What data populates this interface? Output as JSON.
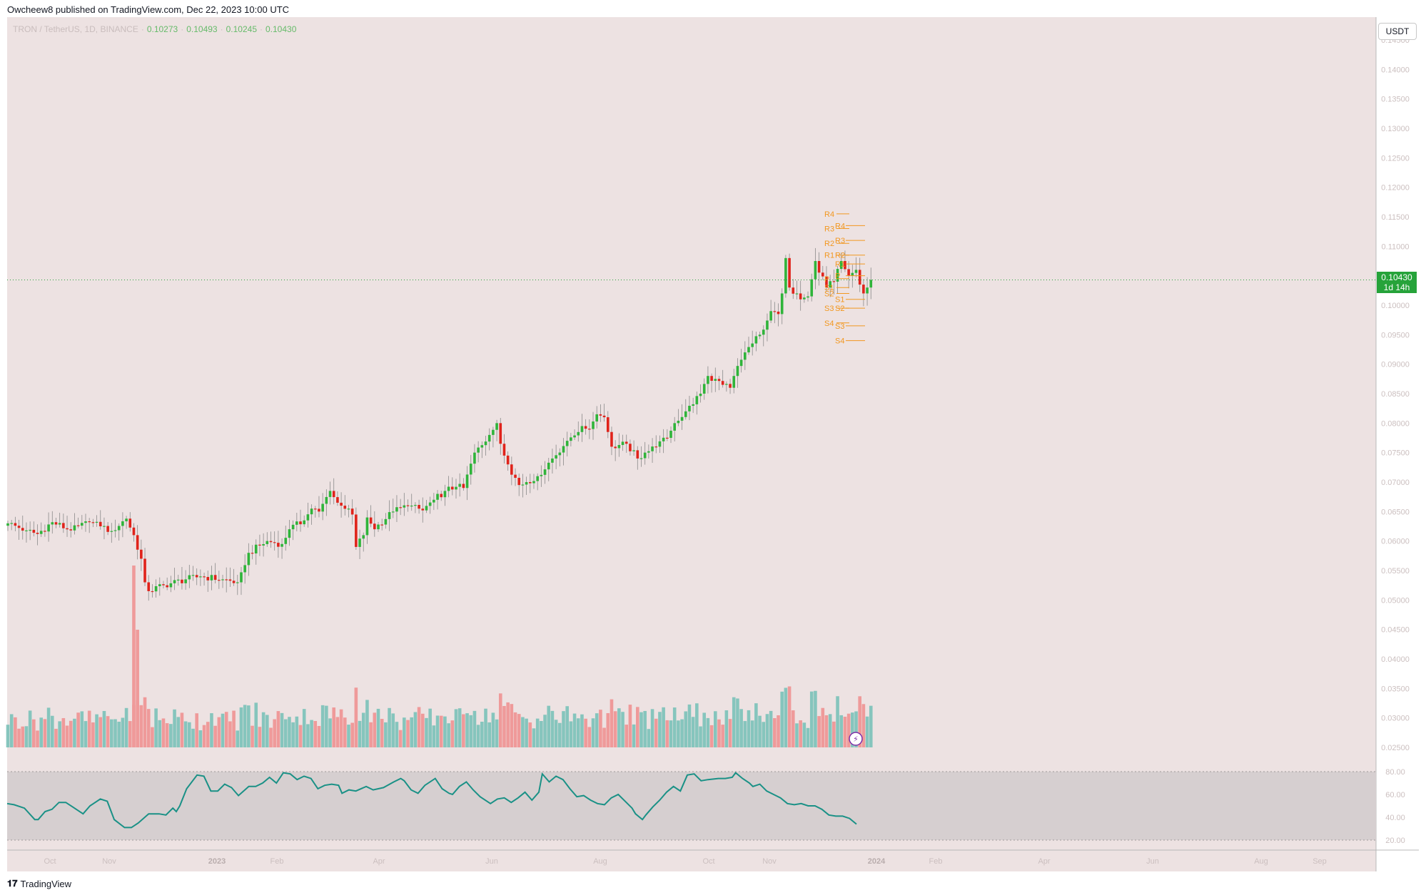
{
  "header": {
    "published_text": "Owcheew8 published on TradingView.com, Dec 22, 2023 10:00 UTC"
  },
  "legend": {
    "symbol": "TRON / TetherUS, 1D, BINANCE",
    "open": "0.10273",
    "high": "0.10493",
    "low": "0.10245",
    "close": "0.10430"
  },
  "currency_button": "USDT",
  "price_tag": {
    "price": "0.10430",
    "countdown": "1d 14h"
  },
  "footer": {
    "brand": "TradingView",
    "logo_glyph": "𝟏𝟕"
  },
  "colors": {
    "up": "#2fb43a",
    "down": "#e0231b",
    "vol_up": "#86c5bd",
    "vol_down": "#ef9a9a",
    "pivot": "#f2971f",
    "rsi": "#1a9186",
    "bg": "#ede2e2"
  },
  "chart_data": [
    {
      "type": "candlestick",
      "title": "TRON / TetherUS, 1D, BINANCE",
      "ylim": [
        0.027,
        0.15
      ],
      "y_ticks": [
        "0.14500",
        "0.14000",
        "0.13500",
        "0.13000",
        "0.12500",
        "0.12000",
        "0.11500",
        "0.11000",
        "0.10500",
        "0.10000",
        "0.09500",
        "0.09000",
        "0.08500",
        "0.08000",
        "0.07500",
        "0.07000",
        "0.06500",
        "0.06000",
        "0.05500",
        "0.05000",
        "0.04500",
        "0.04000",
        "0.03500",
        "0.03000",
        "0.02500"
      ],
      "x_ticks": [
        "Oct",
        "Nov",
        "2023",
        "Feb",
        "Apr",
        "Jun",
        "Aug",
        "Oct",
        "Nov",
        "2024",
        "Feb",
        "Apr",
        "Jun",
        "Aug",
        "Sep"
      ],
      "current_price": 0.1043,
      "anchors": [
        [
          0,
          0.063
        ],
        [
          5,
          0.0618
        ],
        [
          8,
          0.0612
        ],
        [
          12,
          0.0632
        ],
        [
          17,
          0.0618
        ],
        [
          22,
          0.0632
        ],
        [
          25,
          0.0625
        ],
        [
          28,
          0.0617
        ],
        [
          32,
          0.0638
        ],
        [
          34,
          0.061
        ],
        [
          36,
          0.057
        ],
        [
          37,
          0.053
        ],
        [
          38,
          0.0515
        ],
        [
          42,
          0.0525
        ],
        [
          48,
          0.0535
        ],
        [
          52,
          0.054
        ],
        [
          58,
          0.0535
        ],
        [
          62,
          0.053
        ],
        [
          63,
          0.0547
        ],
        [
          65,
          0.058
        ],
        [
          70,
          0.06
        ],
        [
          74,
          0.0595
        ],
        [
          76,
          0.062
        ],
        [
          80,
          0.0635
        ],
        [
          82,
          0.0655
        ],
        [
          84,
          0.065
        ],
        [
          87,
          0.0685
        ],
        [
          89,
          0.0665
        ],
        [
          90,
          0.066
        ],
        [
          92,
          0.0655
        ],
        [
          93,
          0.0645
        ],
        [
          94,
          0.059
        ],
        [
          96,
          0.061
        ],
        [
          97,
          0.064
        ],
        [
          99,
          0.062
        ],
        [
          100,
          0.0628
        ],
        [
          104,
          0.065
        ],
        [
          108,
          0.066
        ],
        [
          112,
          0.0652
        ],
        [
          115,
          0.067
        ],
        [
          118,
          0.0685
        ],
        [
          121,
          0.0692
        ],
        [
          123,
          0.069
        ],
        [
          126,
          0.075
        ],
        [
          130,
          0.078
        ],
        [
          132,
          0.08
        ],
        [
          133,
          0.0765
        ],
        [
          135,
          0.073
        ],
        [
          138,
          0.0695
        ],
        [
          140,
          0.07
        ],
        [
          143,
          0.071
        ],
        [
          147,
          0.074
        ],
        [
          151,
          0.077
        ],
        [
          155,
          0.0795
        ],
        [
          157,
          0.079
        ],
        [
          159,
          0.0815
        ],
        [
          161,
          0.081
        ],
        [
          162,
          0.0785
        ],
        [
          163,
          0.076
        ],
        [
          167,
          0.0765
        ],
        [
          170,
          0.074
        ],
        [
          172,
          0.075
        ],
        [
          175,
          0.076
        ],
        [
          178,
          0.0775
        ],
        [
          180,
          0.08
        ],
        [
          183,
          0.082
        ],
        [
          187,
          0.085
        ],
        [
          189,
          0.088
        ],
        [
          191,
          0.0875
        ],
        [
          193,
          0.0865
        ],
        [
          195,
          0.086
        ],
        [
          196,
          0.088
        ],
        [
          199,
          0.092
        ],
        [
          203,
          0.095
        ],
        [
          206,
          0.099
        ],
        [
          208,
          0.0985
        ],
        [
          209,
          0.102
        ],
        [
          210,
          0.108
        ],
        [
          211,
          0.103
        ],
        [
          213,
          0.102
        ],
        [
          214,
          0.101
        ],
        [
          216,
          0.1015
        ],
        [
          218,
          0.1075
        ],
        [
          221,
          0.103
        ],
        [
          223,
          0.104
        ],
        [
          225,
          0.1075
        ],
        [
          227,
          0.105
        ],
        [
          229,
          0.106
        ],
        [
          230,
          0.1035
        ],
        [
          231,
          0.102
        ],
        [
          232,
          0.103
        ],
        [
          233,
          0.1043
        ]
      ],
      "pivots_left": {
        "labels": [
          "R4",
          "R3",
          "R2",
          "R1",
          "P",
          "S1",
          "S2",
          "S3",
          "S4"
        ],
        "values": [
          0.1155,
          0.113,
          0.1105,
          0.1085,
          0.1045,
          0.103,
          0.102,
          0.0995,
          0.097
        ]
      },
      "pivots_right": {
        "labels": [
          "R4",
          "R3",
          "R2",
          "R1",
          "P",
          "S1",
          "S2",
          "S3",
          "S4"
        ],
        "values": [
          0.1135,
          0.111,
          0.1085,
          0.107,
          0.105,
          0.101,
          0.0995,
          0.0965,
          0.094
        ]
      }
    },
    {
      "type": "bar",
      "title": "Volume",
      "relative_max": 1.0
    },
    {
      "type": "line",
      "title": "RSI",
      "ylim": [
        20,
        80
      ],
      "y_ticks": [
        "80.00",
        "60.00",
        "40.00",
        "20.00"
      ],
      "band": [
        20,
        80
      ],
      "anchors": [
        [
          0,
          52
        ],
        [
          2,
          51
        ],
        [
          5,
          48
        ],
        [
          8,
          38
        ],
        [
          9,
          38
        ],
        [
          11,
          45
        ],
        [
          13,
          47
        ],
        [
          15,
          53
        ],
        [
          17,
          53
        ],
        [
          19,
          49
        ],
        [
          22,
          43
        ],
        [
          24,
          50
        ],
        [
          27,
          56
        ],
        [
          29,
          54
        ],
        [
          31,
          38
        ],
        [
          34,
          31
        ],
        [
          36,
          31
        ],
        [
          38,
          35
        ],
        [
          41,
          43
        ],
        [
          44,
          43
        ],
        [
          46,
          42
        ],
        [
          48,
          48
        ],
        [
          49,
          45
        ],
        [
          50,
          50
        ],
        [
          52,
          65
        ],
        [
          55,
          77
        ],
        [
          57,
          76
        ],
        [
          59,
          63
        ],
        [
          61,
          63
        ],
        [
          63,
          69
        ],
        [
          65,
          66
        ],
        [
          67,
          59
        ],
        [
          70,
          67
        ],
        [
          72,
          67
        ],
        [
          74,
          70
        ],
        [
          76,
          75
        ],
        [
          78,
          70
        ],
        [
          80,
          79
        ],
        [
          82,
          78
        ],
        [
          84,
          73
        ],
        [
          86,
          76
        ],
        [
          88,
          74
        ],
        [
          90,
          65
        ],
        [
          92,
          68
        ],
        [
          94,
          69
        ],
        [
          96,
          68
        ],
        [
          97,
          61
        ],
        [
          99,
          64
        ],
        [
          101,
          63
        ],
        [
          104,
          67
        ],
        [
          106,
          64
        ],
        [
          109,
          66
        ],
        [
          112,
          71
        ],
        [
          114,
          74
        ],
        [
          115,
          72
        ],
        [
          117,
          64
        ],
        [
          119,
          61
        ],
        [
          121,
          68
        ],
        [
          124,
          74
        ],
        [
          126,
          65
        ],
        [
          128,
          61
        ],
        [
          129,
          60
        ],
        [
          131,
          67
        ],
        [
          133,
          71
        ],
        [
          135,
          64
        ],
        [
          137,
          58
        ],
        [
          140,
          52
        ],
        [
          142,
          56
        ],
        [
          144,
          57
        ],
        [
          146,
          53
        ],
        [
          148,
          57
        ],
        [
          150,
          62
        ],
        [
          152,
          55
        ],
        [
          154,
          62
        ],
        [
          155,
          78
        ],
        [
          157,
          71
        ],
        [
          159,
          76
        ],
        [
          161,
          73
        ],
        [
          163,
          65
        ],
        [
          165,
          58
        ],
        [
          167,
          59
        ],
        [
          169,
          55
        ],
        [
          171,
          52
        ],
        [
          173,
          51
        ],
        [
          175,
          57
        ],
        [
          177,
          60
        ],
        [
          179,
          54
        ],
        [
          181,
          48
        ],
        [
          182,
          43
        ],
        [
          184,
          38
        ],
        [
          185,
          42
        ],
        [
          187,
          49
        ],
        [
          189,
          55
        ],
        [
          191,
          62
        ],
        [
          193,
          67
        ],
        [
          195,
          63
        ],
        [
          197,
          77
        ],
        [
          199,
          78
        ],
        [
          201,
          72
        ],
        [
          203,
          73
        ],
        [
          206,
          74
        ],
        [
          208,
          74
        ],
        [
          210,
          75
        ],
        [
          211,
          79
        ],
        [
          213,
          74
        ],
        [
          215,
          70
        ],
        [
          216,
          67
        ],
        [
          218,
          69
        ],
        [
          220,
          63
        ],
        [
          222,
          60
        ],
        [
          224,
          57
        ],
        [
          226,
          52
        ],
        [
          228,
          51
        ],
        [
          230,
          52
        ],
        [
          232,
          50
        ],
        [
          234,
          50
        ],
        [
          236,
          47
        ],
        [
          238,
          42
        ],
        [
          240,
          41
        ],
        [
          242,
          41
        ],
        [
          244,
          39
        ],
        [
          246,
          34
        ]
      ]
    }
  ]
}
